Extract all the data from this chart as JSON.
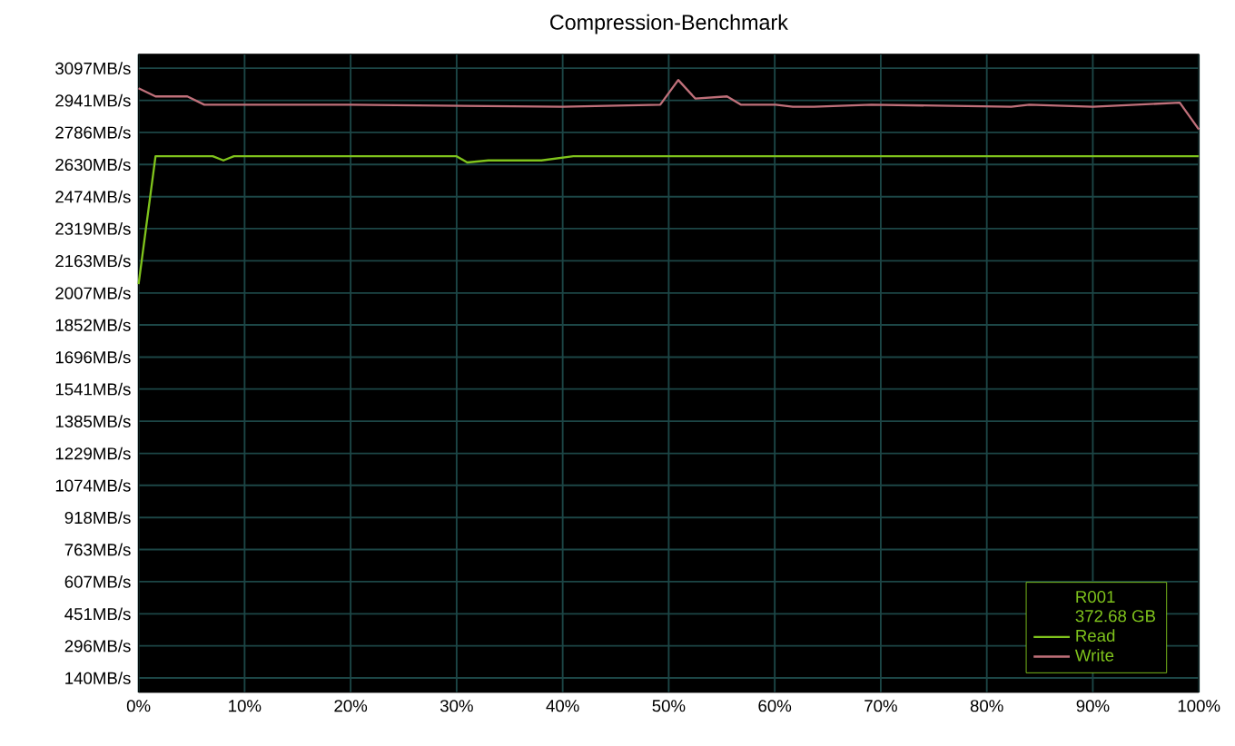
{
  "chart_data": {
    "type": "line",
    "title": "Compression-Benchmark",
    "x": [
      0,
      1.6,
      4.6,
      6.2,
      20,
      40,
      49.2,
      50.9,
      52.5,
      55.5,
      56.8,
      60.1,
      61.7,
      63.7,
      69.1,
      82.3,
      84,
      90,
      98.2,
      100
    ],
    "series": [
      {
        "name": "Read",
        "color": "#7fc31c",
        "x": [
          0,
          1.6,
          7,
          8,
          9,
          30,
          31,
          33,
          35,
          38,
          41,
          100
        ],
        "values": [
          2050,
          2670,
          2670,
          2650,
          2670,
          2670,
          2640,
          2650,
          2650,
          2650,
          2670,
          2670
        ]
      },
      {
        "name": "Write",
        "color": "#c0707a",
        "values": [
          3000,
          2960,
          2960,
          2920,
          2920,
          2910,
          2920,
          3040,
          2950,
          2960,
          2920,
          2920,
          2910,
          2910,
          2920,
          2910,
          2920,
          2910,
          2930,
          2800
        ]
      }
    ],
    "xlim": [
      0,
      100
    ],
    "ylim": [
      70,
      3165
    ],
    "xticks": [
      {
        "value": 0,
        "label": "0%"
      },
      {
        "value": 10,
        "label": "10%"
      },
      {
        "value": 20,
        "label": "20%"
      },
      {
        "value": 30,
        "label": "30%"
      },
      {
        "value": 40,
        "label": "40%"
      },
      {
        "value": 50,
        "label": "50%"
      },
      {
        "value": 60,
        "label": "60%"
      },
      {
        "value": 70,
        "label": "70%"
      },
      {
        "value": 80,
        "label": "80%"
      },
      {
        "value": 90,
        "label": "90%"
      },
      {
        "value": 100,
        "label": "100%"
      }
    ],
    "yticks": [
      {
        "value": 140,
        "label": "140MB/s"
      },
      {
        "value": 296,
        "label": "296MB/s"
      },
      {
        "value": 451,
        "label": "451MB/s"
      },
      {
        "value": 607,
        "label": "607MB/s"
      },
      {
        "value": 763,
        "label": "763MB/s"
      },
      {
        "value": 918,
        "label": "918MB/s"
      },
      {
        "value": 1074,
        "label": "1074MB/s"
      },
      {
        "value": 1229,
        "label": "1229MB/s"
      },
      {
        "value": 1385,
        "label": "1385MB/s"
      },
      {
        "value": 1541,
        "label": "1541MB/s"
      },
      {
        "value": 1696,
        "label": "1696MB/s"
      },
      {
        "value": 1852,
        "label": "1852MB/s"
      },
      {
        "value": 2007,
        "label": "2007MB/s"
      },
      {
        "value": 2163,
        "label": "2163MB/s"
      },
      {
        "value": 2319,
        "label": "2319MB/s"
      },
      {
        "value": 2474,
        "label": "2474MB/s"
      },
      {
        "value": 2630,
        "label": "2630MB/s"
      },
      {
        "value": 2786,
        "label": "2786MB/s"
      },
      {
        "value": 2941,
        "label": "2941MB/s"
      },
      {
        "value": 3097,
        "label": "3097MB/s"
      }
    ],
    "legend_title": "R001",
    "annotations": [
      "372.68 GB"
    ],
    "grid": true,
    "legend": "bottom right",
    "marker": "none",
    "line_style": "solid"
  }
}
